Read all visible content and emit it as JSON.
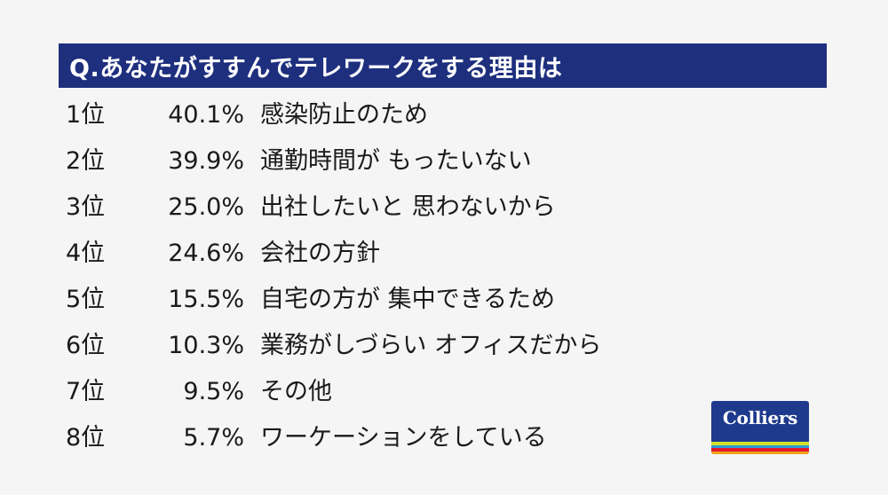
{
  "header": {
    "title": "Q.あなたがすすんでテレワークをする理由は"
  },
  "rankings": [
    {
      "rank": "1位",
      "percent": "40.1%",
      "reason": "感染防止のため"
    },
    {
      "rank": "2位",
      "percent": "39.9%",
      "reason": "通勤時間が もったいない"
    },
    {
      "rank": "3位",
      "percent": "25.0%",
      "reason": "出社したいと 思わないから"
    },
    {
      "rank": "4位",
      "percent": "24.6%",
      "reason": "会社の方針"
    },
    {
      "rank": "5位",
      "percent": "15.5%",
      "reason": "自宅の方が 集中できるため"
    },
    {
      "rank": "6位",
      "percent": "10.3%",
      "reason": "業務がしづらい オフィスだから"
    },
    {
      "rank": "7位",
      "percent": "9.5%",
      "reason": "その他"
    },
    {
      "rank": "8位",
      "percent": "5.7%",
      "reason": "ワーケーションをしている"
    }
  ],
  "logo": {
    "text": "Colliers",
    "stripe_colors": [
      "#d4df2c",
      "#2a9bd6",
      "#e21a2b",
      "#f0a31c"
    ]
  },
  "colors": {
    "header_bg": "#1e2f7e",
    "logo_bg": "#1e3a8c",
    "page_bg": "#f5f5f5"
  }
}
